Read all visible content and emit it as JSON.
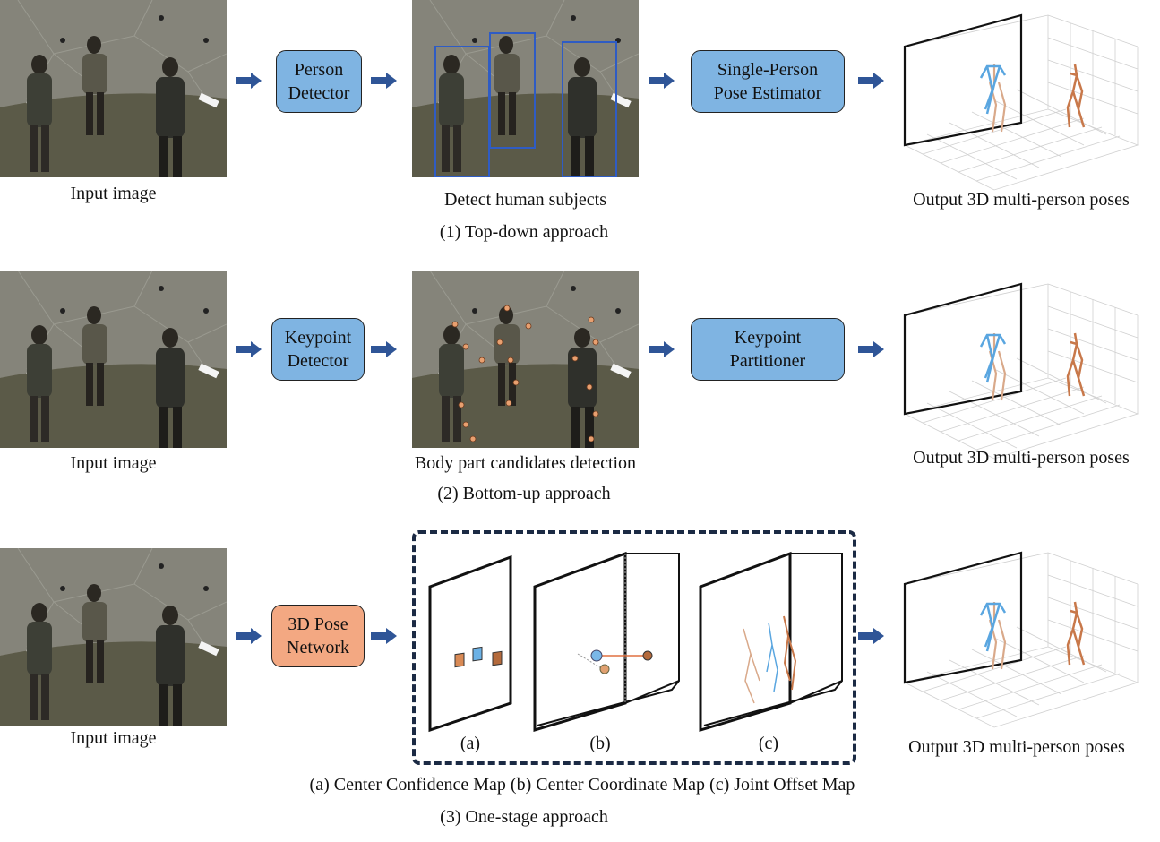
{
  "rows": [
    {
      "input_caption": "Input image",
      "stage1_label": "Person\nDetector",
      "mid_caption": "Detect human subjects",
      "stage2_label": "Single-Person\nPose Estimator",
      "output_caption": "Output 3D multi-person poses",
      "approach_caption": "(1) Top-down approach"
    },
    {
      "input_caption": "Input image",
      "stage1_label": "Keypoint\nDetector",
      "mid_caption": "Body part candidates detection",
      "stage2_label": "Keypoint\nPartitioner",
      "output_caption": "Output 3D multi-person poses",
      "approach_caption": "(2) Bottom-up approach"
    },
    {
      "input_caption": "Input image",
      "stage1_label": "3D Pose\nNetwork",
      "map_labels": [
        "(a)",
        "(b)",
        "(c)"
      ],
      "maps_caption": "(a) Center Confidence Map (b) Center Coordinate Map (c) Joint Offset Map",
      "output_caption": "Output 3D multi-person poses",
      "approach_caption": "(3) One-stage approach"
    }
  ],
  "colors": {
    "box_blue": "#7fb4e2",
    "box_orange": "#f3a882",
    "arrow": "#2f5597",
    "bbox": "#2f5cc4",
    "skeleton_blue": "#5aa6e0",
    "skeleton_tan": "#d9a98a",
    "skeleton_orange": "#c8784a"
  }
}
